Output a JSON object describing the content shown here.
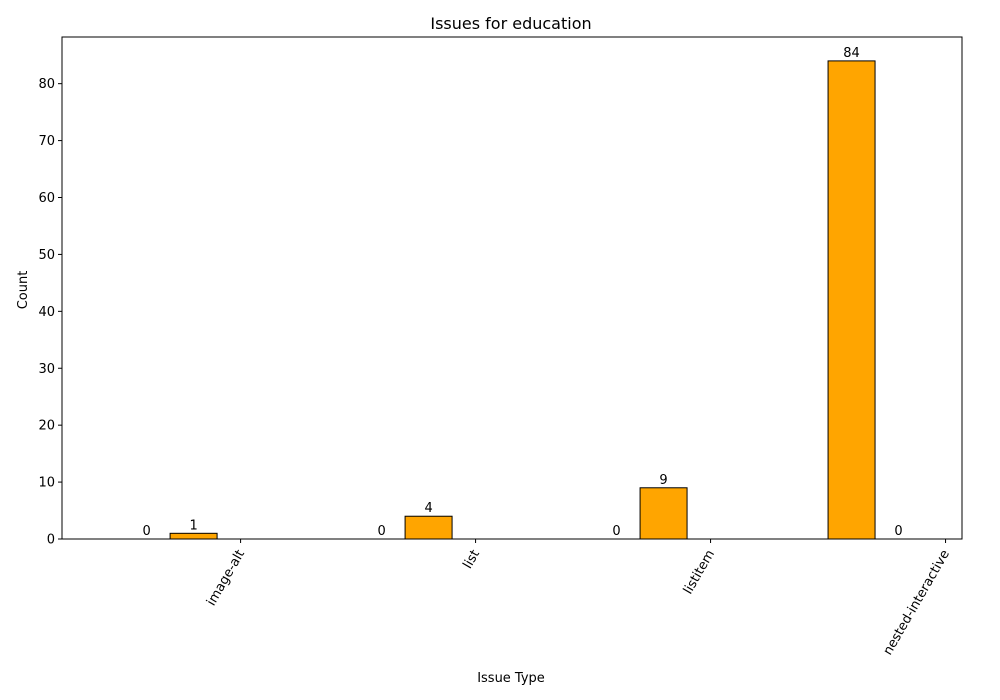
{
  "chart_data": {
    "type": "bar",
    "title": "Issues for education",
    "xlabel": "Issue Type",
    "ylabel": "Count",
    "categories": [
      "image-alt",
      "list",
      "listitem",
      "nested-interactive"
    ],
    "series": [
      {
        "values": [
          0,
          0,
          0,
          84
        ]
      },
      {
        "values": [
          1,
          4,
          9,
          0
        ]
      },
      {
        "values": [
          0,
          0,
          0,
          0
        ]
      }
    ],
    "data_labels": [
      [
        "0",
        "1",
        null
      ],
      [
        "0",
        "4",
        null
      ],
      [
        "0",
        "9",
        null
      ],
      [
        "84",
        "0",
        null
      ]
    ],
    "ylim": [
      0,
      88.2
    ],
    "yticks": [
      0,
      10,
      20,
      30,
      40,
      50,
      60,
      70,
      80
    ],
    "bar_color": "#FFA500",
    "edge_color": "#000000",
    "grid": false,
    "legend": "none"
  }
}
